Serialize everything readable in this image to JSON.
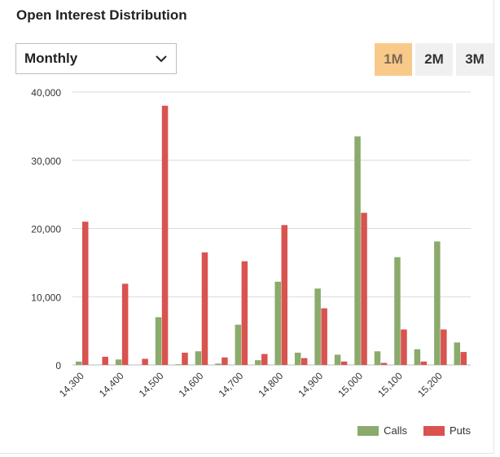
{
  "title": "Open Interest Distribution",
  "period_select": {
    "value": "Monthly"
  },
  "range_tabs": [
    {
      "label": "1M",
      "active": true
    },
    {
      "label": "2M",
      "active": false
    },
    {
      "label": "3M",
      "active": false
    }
  ],
  "colors": {
    "calls": "#8aab6b",
    "puts": "#d9534f",
    "active_tab": "#f9c98a",
    "grid": "#d9d9d9"
  },
  "icons": {
    "dropdown": "chevron-down-icon"
  },
  "chart_data": {
    "type": "bar",
    "title": "",
    "xlabel": "",
    "ylabel": "",
    "ylim": [
      0,
      40000
    ],
    "yticks": [
      0,
      10000,
      20000,
      30000,
      40000
    ],
    "ytick_labels": [
      "0",
      "10,000",
      "20,000",
      "30,000",
      "40,000"
    ],
    "grid": true,
    "legend": "bottom-right",
    "categories": [
      "14,300",
      "14,350",
      "14,400",
      "14,450",
      "14,500",
      "14,550",
      "14,600",
      "14,650",
      "14,700",
      "14,750",
      "14,800",
      "14,850",
      "14,900",
      "14,950",
      "15,000",
      "15,050",
      "15,100",
      "15,150",
      "15,200",
      "15,250"
    ],
    "x_tick_labels": [
      "14,300",
      "14,400",
      "14,500",
      "14,600",
      "14,700",
      "14,800",
      "14,900",
      "15,000",
      "15,100",
      "15,200"
    ],
    "series": [
      {
        "name": "Calls",
        "values": [
          500,
          0,
          800,
          0,
          7000,
          100,
          2000,
          200,
          5900,
          700,
          12200,
          1800,
          11200,
          1500,
          33500,
          2000,
          15800,
          2300,
          18100,
          3300
        ]
      },
      {
        "name": "Puts",
        "values": [
          21000,
          1200,
          11900,
          900,
          38000,
          1800,
          16500,
          1100,
          15200,
          1600,
          20500,
          1000,
          8300,
          500,
          22300,
          300,
          5200,
          500,
          5200,
          1900
        ]
      }
    ]
  }
}
